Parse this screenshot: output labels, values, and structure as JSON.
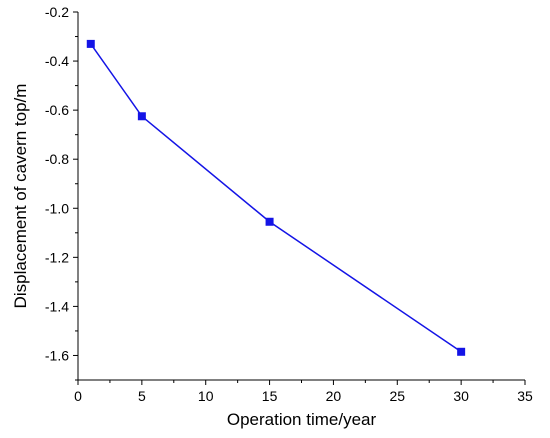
{
  "chart_data": {
    "type": "line",
    "title": "",
    "xlabel": "Operation time/year",
    "ylabel": "Displacement of cavern top/m",
    "xlim": [
      0,
      35
    ],
    "ylim": [
      -1.7,
      -0.2
    ],
    "xticks": [
      0,
      5,
      10,
      15,
      20,
      25,
      30,
      35
    ],
    "yticks": [
      -1.6,
      -1.4,
      -1.2,
      -1.0,
      -0.8,
      -0.6,
      -0.4,
      -0.2
    ],
    "xtick_labels": [
      "0",
      "5",
      "10",
      "15",
      "20",
      "25",
      "30",
      "35"
    ],
    "ytick_labels": [
      "-1.6",
      "-1.4",
      "-1.2",
      "-1.0",
      "-0.8",
      "-0.6",
      "-0.4",
      "-0.2"
    ],
    "grid": false,
    "legend": "none",
    "series": [
      {
        "x": [
          1,
          5,
          15,
          30
        ],
        "y": [
          -0.33,
          -0.625,
          -1.055,
          -1.585
        ],
        "color": "#1414e6",
        "marker": "square"
      }
    ]
  }
}
